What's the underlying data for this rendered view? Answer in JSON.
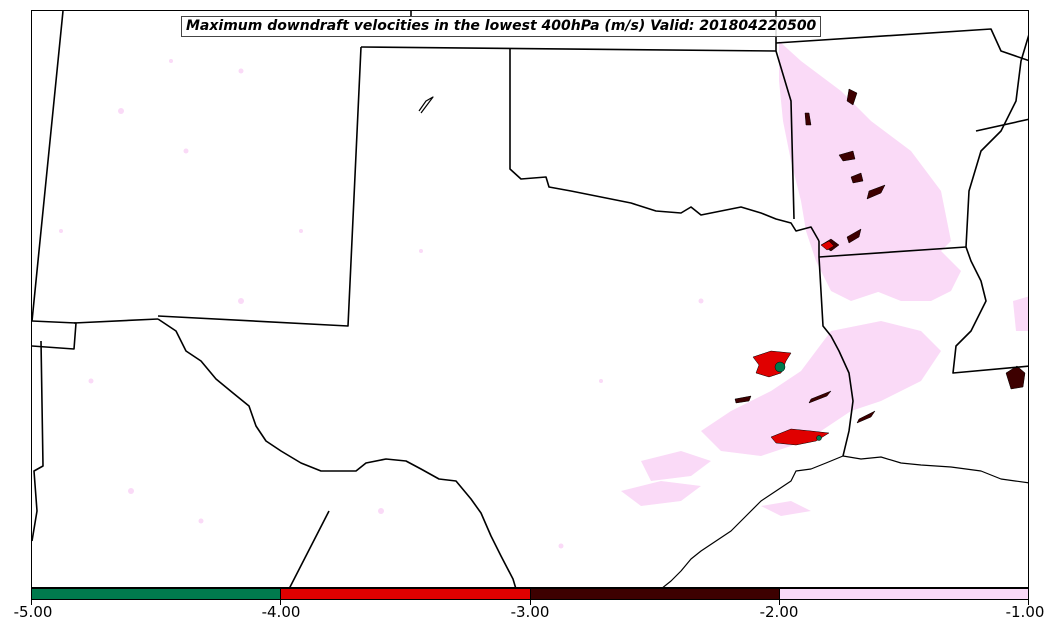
{
  "title": "Maximum downdraft velocities in the lowest 400hPa (m/s) Valid: 201804220500",
  "colorbar": {
    "segments": [
      {
        "range": [
          -5.0,
          -4.0
        ],
        "color": "#007a4d"
      },
      {
        "range": [
          -4.0,
          -3.0
        ],
        "color": "#e00000"
      },
      {
        "range": [
          -3.0,
          -2.0
        ],
        "color": "#3d0000"
      },
      {
        "range": [
          -2.0,
          -1.0
        ],
        "color": "#fadaf7"
      }
    ],
    "ticks": [
      "-5.00",
      "-4.00",
      "-3.00",
      "-2.00",
      "-1.00"
    ]
  }
}
